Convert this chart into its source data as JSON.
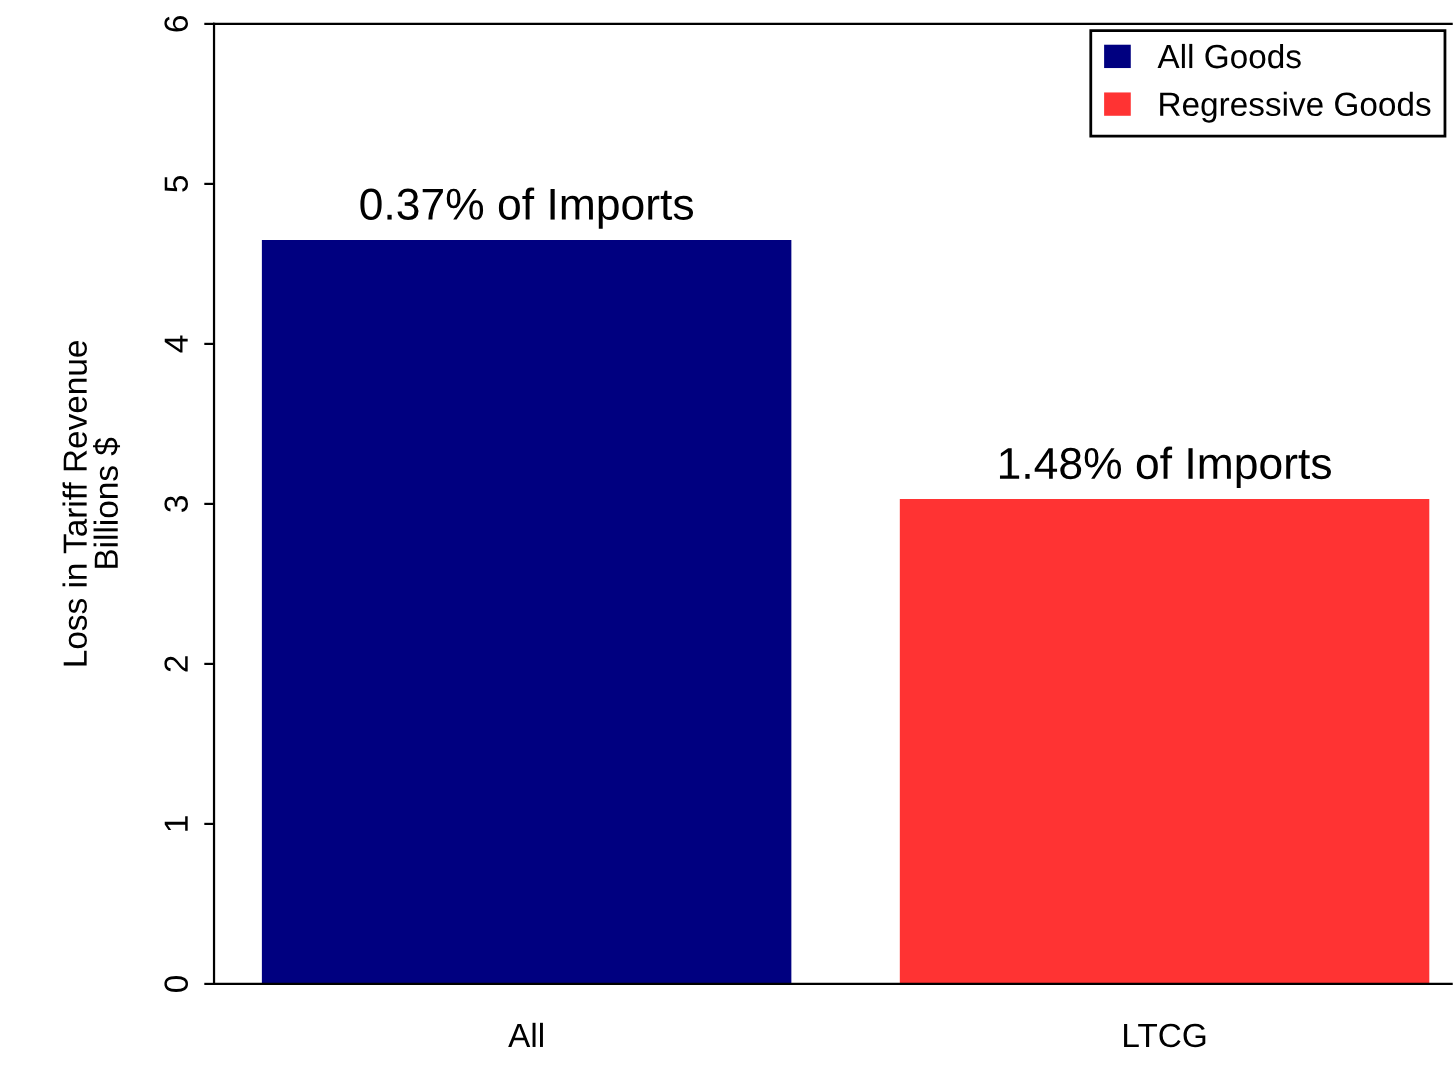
{
  "chart_data": {
    "type": "bar",
    "ylabel": "Loss in Tariff Revenue\nBillions $",
    "categories": [
      "All",
      "LTCG"
    ],
    "series": [
      {
        "name": "All Goods",
        "color": "#000080",
        "values": [
          4.65,
          null
        ]
      },
      {
        "name": "Regressive Goods",
        "color": "#ff3333",
        "values": [
          null,
          3.03
        ]
      }
    ],
    "ylim": [
      0,
      6
    ],
    "yticks": [
      0,
      1,
      2,
      3,
      4,
      5,
      6
    ],
    "grid": false,
    "legend": "top right",
    "annotations": [
      {
        "text": "0.37% of Imports",
        "x": "All",
        "y": 4.65
      },
      {
        "text": "1.48% of Imports",
        "x": "LTCG",
        "y": 3.03
      }
    ]
  }
}
